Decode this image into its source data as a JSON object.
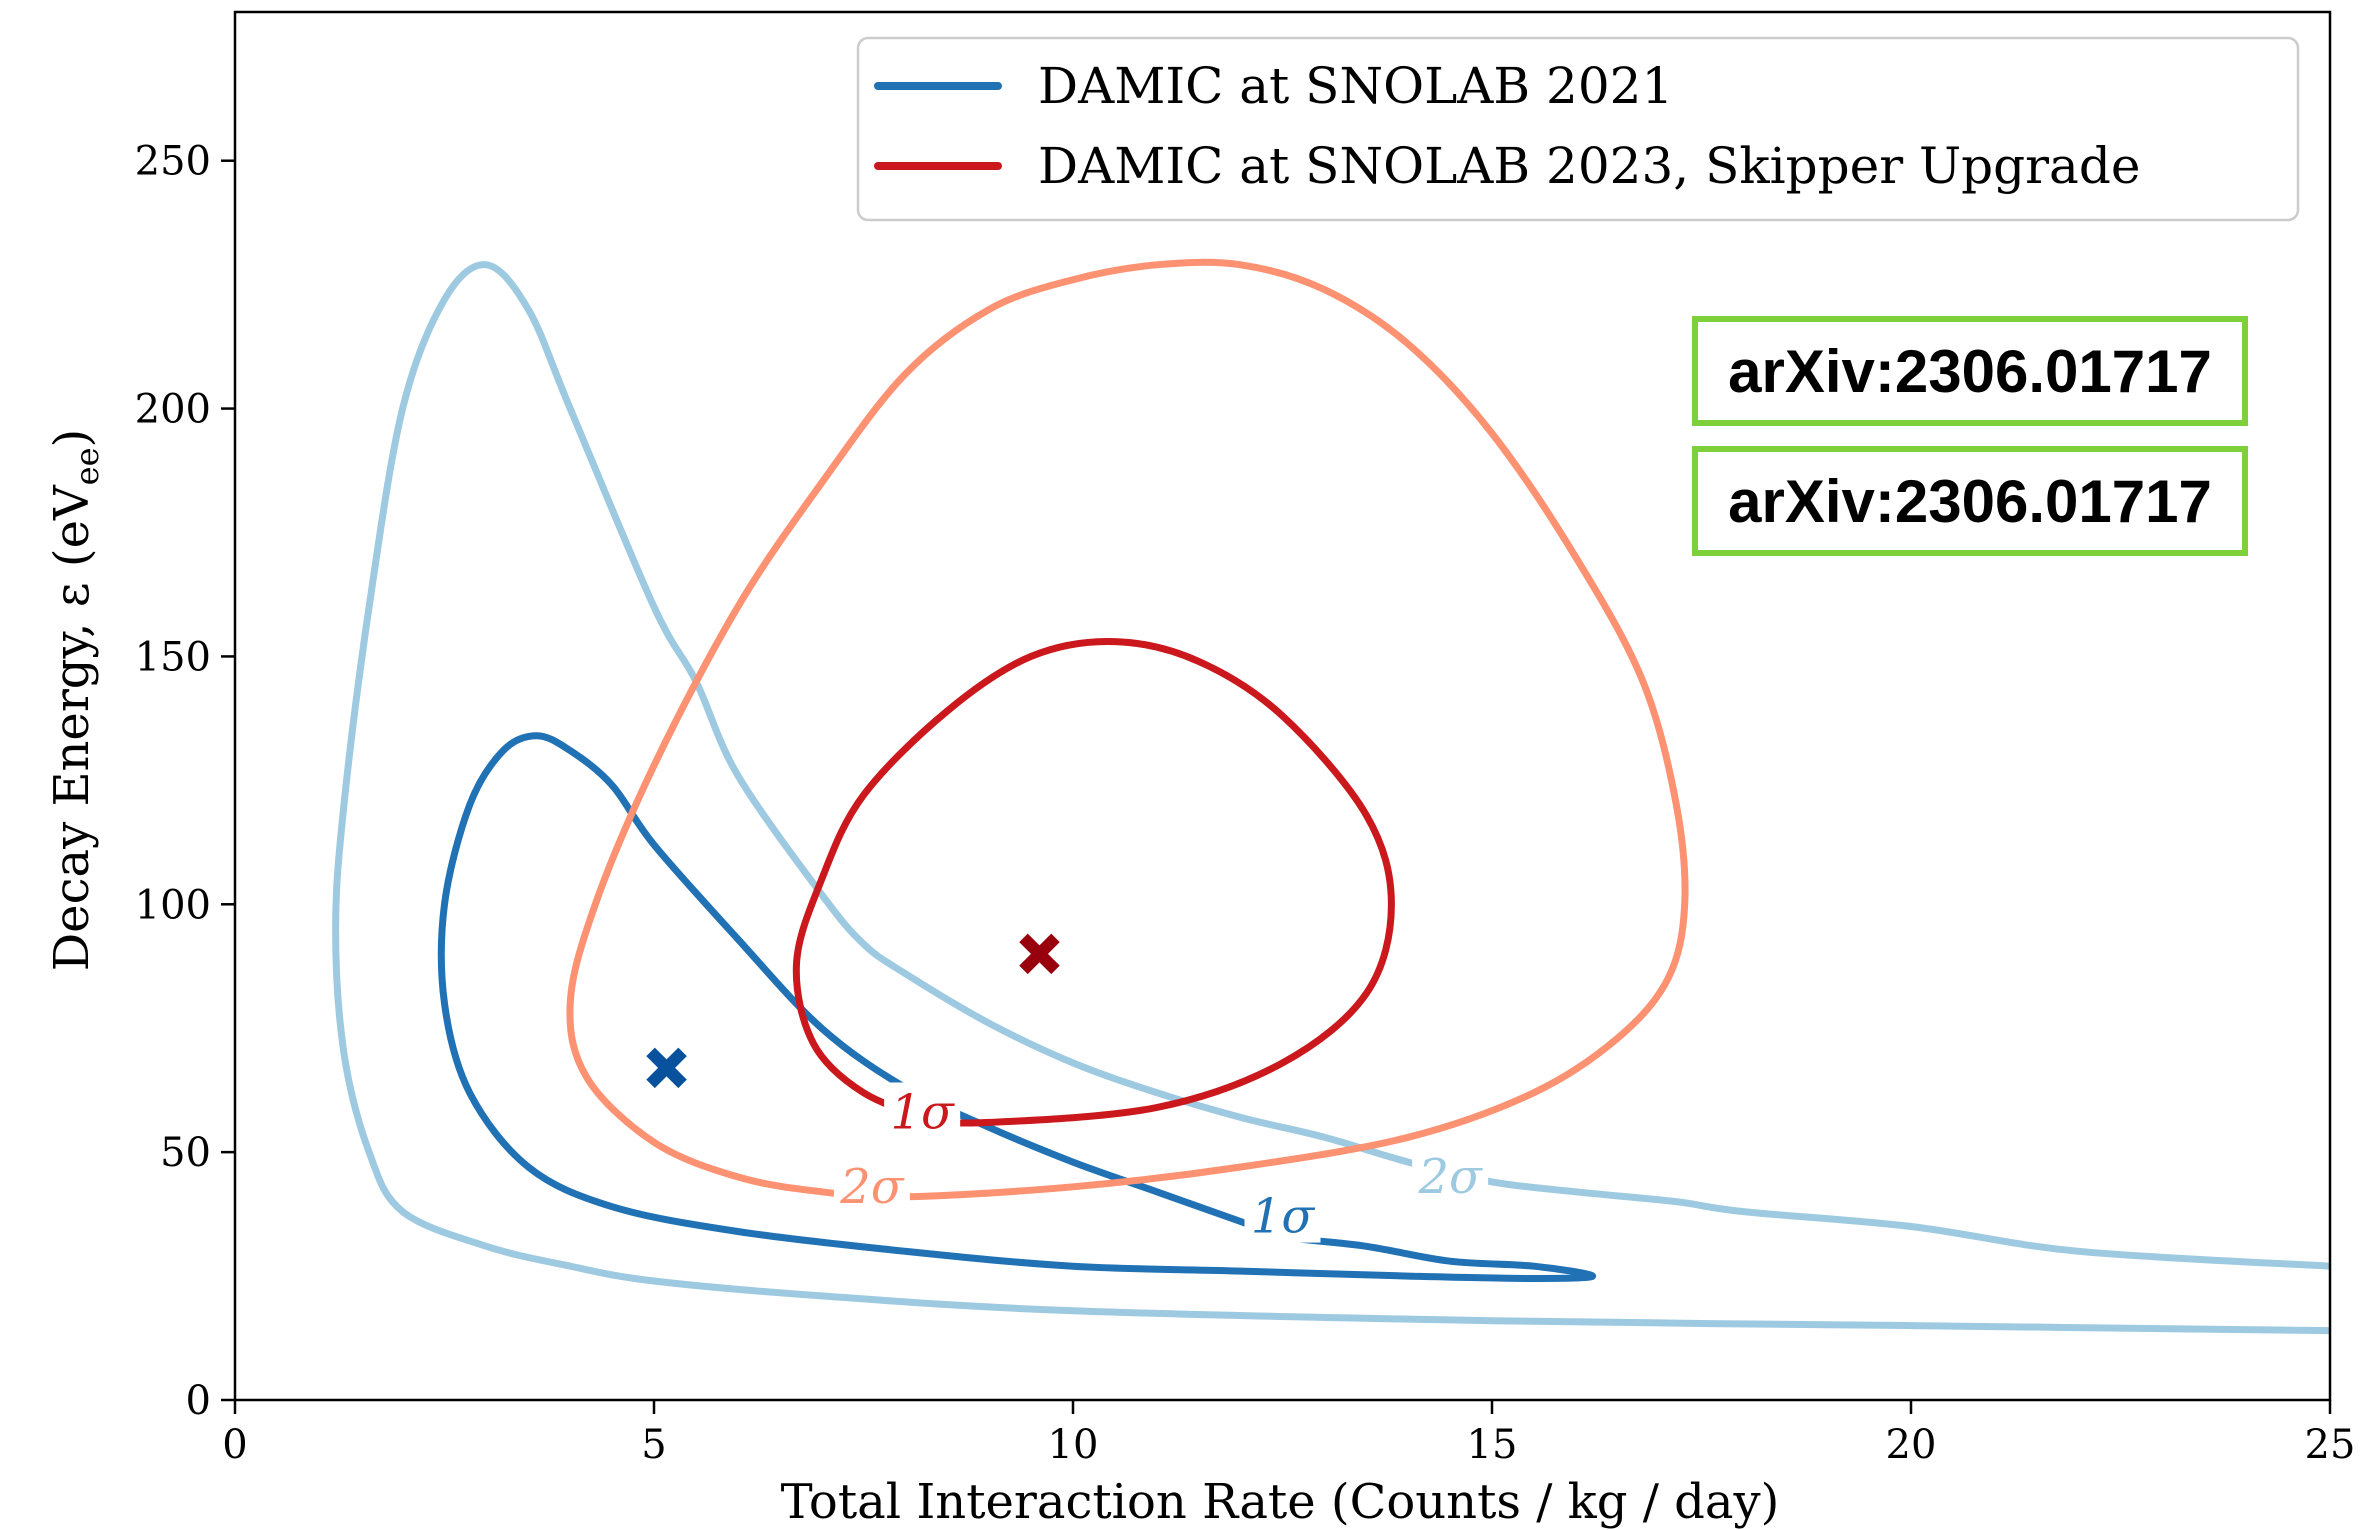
{
  "chart_data": {
    "type": "line",
    "xlabel": "Total Interaction Rate (Counts / kg / day)",
    "ylabel": "Decay Energy, ε (eV",
    "ylabel_sub": "ee",
    "ylabel_tail": ")",
    "xlim": [
      0,
      25
    ],
    "ylim": [
      0,
      280
    ],
    "x_ticks": [
      0,
      5,
      10,
      15,
      20,
      25
    ],
    "y_ticks": [
      0,
      50,
      100,
      150,
      200,
      250
    ],
    "grid": false,
    "legend_position": "top-right",
    "legend": [
      {
        "name": "DAMIC at SNOLAB 2021",
        "color": "#2171b5"
      },
      {
        "name": "DAMIC at SNOLAB 2023, Skipper Upgrade",
        "color": "#cb181d"
      }
    ],
    "contours": [
      {
        "dataset": "DAMIC at SNOLAB 2021",
        "level": "2σ",
        "color": "#9ecae1",
        "label": "2σ",
        "label_at": [
          14.5,
          45
        ],
        "points": [
          [
            25,
            27
          ],
          [
            22,
            30
          ],
          [
            20,
            35
          ],
          [
            18,
            38
          ],
          [
            17.2,
            40
          ],
          [
            16,
            42
          ],
          [
            15,
            44
          ],
          [
            14,
            48
          ],
          [
            13,
            53
          ],
          [
            12,
            57
          ],
          [
            11,
            62
          ],
          [
            10,
            68
          ],
          [
            9,
            76
          ],
          [
            8,
            86
          ],
          [
            7.5,
            92
          ],
          [
            7,
            102
          ],
          [
            6,
            126
          ],
          [
            5.5,
            145
          ],
          [
            5,
            160
          ],
          [
            4,
            200
          ],
          [
            3.5,
            220
          ],
          [
            3,
            229
          ],
          [
            2.5,
            222
          ],
          [
            2,
            200
          ],
          [
            1.6,
            160
          ],
          [
            1.3,
            120
          ],
          [
            1.2,
            95
          ],
          [
            1.3,
            70
          ],
          [
            1.6,
            50
          ],
          [
            2,
            38
          ],
          [
            3,
            31
          ],
          [
            4,
            27
          ],
          [
            5,
            24
          ],
          [
            7,
            21
          ],
          [
            10,
            18
          ],
          [
            15,
            16
          ],
          [
            20,
            15
          ],
          [
            25,
            14
          ]
        ]
      },
      {
        "dataset": "DAMIC at SNOLAB 2021",
        "level": "1σ",
        "color": "#2171b5",
        "label": "1σ",
        "label_at": [
          12.5,
          37
        ],
        "points": [
          [
            16.2,
            25
          ],
          [
            15.5,
            27
          ],
          [
            14.5,
            28
          ],
          [
            13.5,
            31
          ],
          [
            12.5,
            33
          ],
          [
            12,
            36
          ],
          [
            11,
            42
          ],
          [
            10,
            48
          ],
          [
            9,
            55
          ],
          [
            8,
            63
          ],
          [
            7,
            75
          ],
          [
            6,
            93
          ],
          [
            5,
            112
          ],
          [
            4.5,
            124
          ],
          [
            4,
            131
          ],
          [
            3.6,
            134
          ],
          [
            3.2,
            131
          ],
          [
            2.8,
            120
          ],
          [
            2.5,
            100
          ],
          [
            2.5,
            80
          ],
          [
            2.8,
            62
          ],
          [
            3.5,
            47
          ],
          [
            4.5,
            39
          ],
          [
            6,
            34
          ],
          [
            8,
            30
          ],
          [
            10,
            27
          ],
          [
            12,
            26
          ],
          [
            14,
            25
          ],
          [
            15.5,
            24.5
          ],
          [
            16.2,
            25
          ]
        ]
      },
      {
        "dataset": "DAMIC at SNOLAB 2023, Skipper Upgrade",
        "level": "2σ",
        "color": "#fc9272",
        "label": "2σ",
        "label_at": [
          7.6,
          43
        ],
        "points": [
          [
            8,
            41
          ],
          [
            10,
            43
          ],
          [
            12,
            47
          ],
          [
            14,
            53
          ],
          [
            15.5,
            62
          ],
          [
            16.5,
            73
          ],
          [
            17.1,
            85
          ],
          [
            17.3,
            100
          ],
          [
            17.2,
            120
          ],
          [
            16.8,
            145
          ],
          [
            16,
            170
          ],
          [
            15,
            195
          ],
          [
            14,
            213
          ],
          [
            13,
            224
          ],
          [
            12,
            229
          ],
          [
            11,
            229
          ],
          [
            10,
            226
          ],
          [
            9,
            220
          ],
          [
            8,
            207
          ],
          [
            7,
            185
          ],
          [
            6,
            160
          ],
          [
            5,
            128
          ],
          [
            4.3,
            100
          ],
          [
            4,
            80
          ],
          [
            4.2,
            65
          ],
          [
            5,
            52
          ],
          [
            6,
            45
          ],
          [
            7,
            42
          ],
          [
            8,
            41
          ]
        ]
      },
      {
        "dataset": "DAMIC at SNOLAB 2023, Skipper Upgrade",
        "level": "1σ",
        "color": "#cb181d",
        "label": "1σ",
        "label_at": [
          8.2,
          58
        ],
        "points": [
          [
            9,
            56
          ],
          [
            11,
            59
          ],
          [
            12.5,
            68
          ],
          [
            13.5,
            82
          ],
          [
            13.8,
            100
          ],
          [
            13.5,
            118
          ],
          [
            12.5,
            138
          ],
          [
            11.5,
            149
          ],
          [
            10.5,
            153
          ],
          [
            9.5,
            150
          ],
          [
            8.5,
            139
          ],
          [
            7.5,
            122
          ],
          [
            7,
            105
          ],
          [
            6.7,
            88
          ],
          [
            6.9,
            72
          ],
          [
            7.5,
            62
          ],
          [
            8.3,
            57
          ],
          [
            9,
            56
          ]
        ]
      }
    ],
    "best_fit_markers": [
      {
        "dataset": "DAMIC at SNOLAB 2021",
        "x": 5.15,
        "y": 67,
        "color": "#08519c"
      },
      {
        "dataset": "DAMIC at SNOLAB 2023, Skipper Upgrade",
        "x": 9.6,
        "y": 90,
        "color": "#99000d"
      }
    ]
  },
  "badges": [
    "arXiv:2306.01717",
    "arXiv:2306.01717"
  ]
}
